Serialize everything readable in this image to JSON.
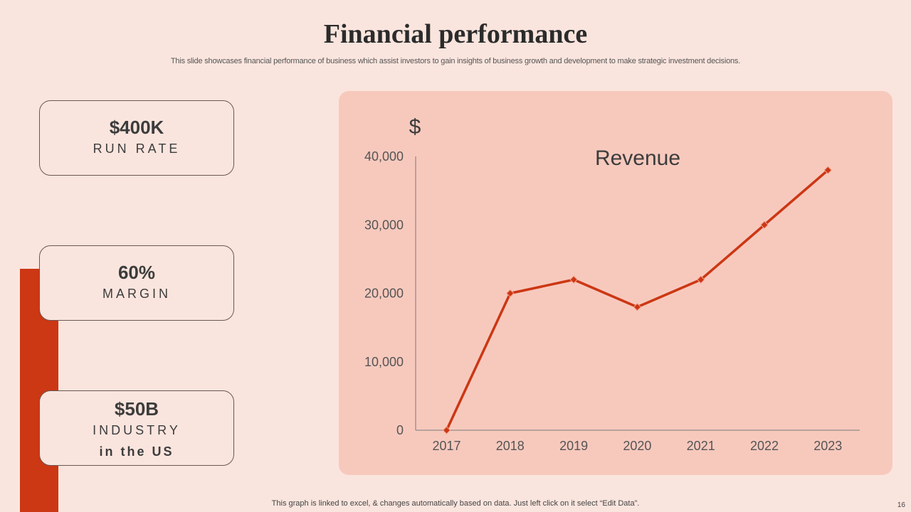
{
  "slide": {
    "title": "Financial performance",
    "subtitle": "This slide showcases financial performance of business which assist investors to gain insights of business growth and development to make strategic investment decisions.",
    "footer": "This graph is linked to excel, & changes automatically based on data. Just left click on it select “Edit Data”.",
    "page_number": "16"
  },
  "kpis": [
    {
      "value": "$400K",
      "label": "RUN RATE"
    },
    {
      "value": "60%",
      "label": "MARGIN"
    },
    {
      "value": "$50B",
      "label": "INDUSTRY",
      "label2": "in the US"
    }
  ],
  "colors": {
    "background": "#fae5de",
    "panel": "#f7c9bd",
    "accent": "#cc3714",
    "line": "#cc3714"
  },
  "chart_data": {
    "type": "line",
    "title": "Revenue",
    "ylabel": "$",
    "xlabel": "",
    "categories": [
      "2017",
      "2018",
      "2019",
      "2020",
      "2021",
      "2022",
      "2023"
    ],
    "series": [
      {
        "name": "Revenue",
        "values": [
          0,
          20000,
          22000,
          18000,
          22000,
          30000,
          38000
        ]
      }
    ],
    "ylim": [
      0,
      40000
    ],
    "yticks": [
      0,
      10000,
      20000,
      30000,
      40000
    ],
    "ytick_labels": [
      "0",
      "10,000",
      "20,000",
      "30,000",
      "40,000"
    ],
    "grid": false,
    "legend": "none"
  }
}
